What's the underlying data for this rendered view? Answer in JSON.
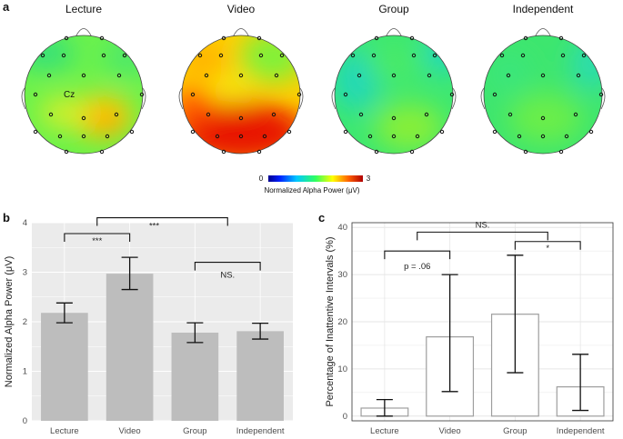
{
  "panel_labels": {
    "a": "a",
    "b": "b",
    "c": "c"
  },
  "headmaps": [
    {
      "title": "Lecture",
      "electrode_label": "Cz"
    },
    {
      "title": "Video",
      "electrode_label": ""
    },
    {
      "title": "Group",
      "electrode_label": ""
    },
    {
      "title": "Independent",
      "electrode_label": ""
    }
  ],
  "colorbar": {
    "min": "0",
    "max": "3",
    "label": "Normalized Alpha Power (μV)"
  },
  "colors": {
    "bar_fill": "#bdbdbd",
    "panel_bg": "#ebebeb",
    "grid": "#ffffff",
    "bar_outline": "#9e9e9e"
  },
  "chart_data": [
    {
      "id": "b",
      "type": "bar",
      "categories": [
        "Lecture",
        "Video",
        "Group",
        "Independent"
      ],
      "values": [
        2.18,
        2.97,
        1.78,
        1.81
      ],
      "error_low": [
        1.98,
        2.65,
        1.58,
        1.65
      ],
      "error_high": [
        2.38,
        3.3,
        1.98,
        1.97
      ],
      "ylabel": "Normalized Alpha Power (μV)",
      "xlabel": "",
      "ylim": [
        0,
        4
      ],
      "yticks": [
        "0",
        "1",
        "2",
        "3",
        "4"
      ],
      "style": "filled-gray",
      "annotations": [
        {
          "text": "***",
          "left": 0,
          "right": 1,
          "y": 3.78
        },
        {
          "text": "***",
          "left": 0.5,
          "right": 2.5,
          "y": 4.1
        },
        {
          "text": "NS.",
          "left": 2,
          "right": 3,
          "y": 3.2
        }
      ]
    },
    {
      "id": "c",
      "type": "bar",
      "categories": [
        "Lecture",
        "Video",
        "Group",
        "Independent"
      ],
      "values": [
        1.7,
        16.8,
        21.6,
        6.2
      ],
      "error_low": [
        0,
        5.2,
        9.2,
        1.2
      ],
      "error_high": [
        3.5,
        30.0,
        34.1,
        13.1
      ],
      "ylabel": "Percentage of Inattentive Intervals (%)",
      "xlabel": "",
      "ylim": [
        -1,
        41
      ],
      "yticks": [
        "0",
        "10",
        "20",
        "30",
        "40"
      ],
      "style": "outline",
      "annotations": [
        {
          "text": "p = .06",
          "left": 0,
          "right": 1,
          "y": 35
        },
        {
          "text": "*",
          "left": 2,
          "right": 3,
          "y": 37
        },
        {
          "text": "NS.",
          "left": 0.5,
          "right": 2.5,
          "y": 39
        }
      ]
    }
  ]
}
